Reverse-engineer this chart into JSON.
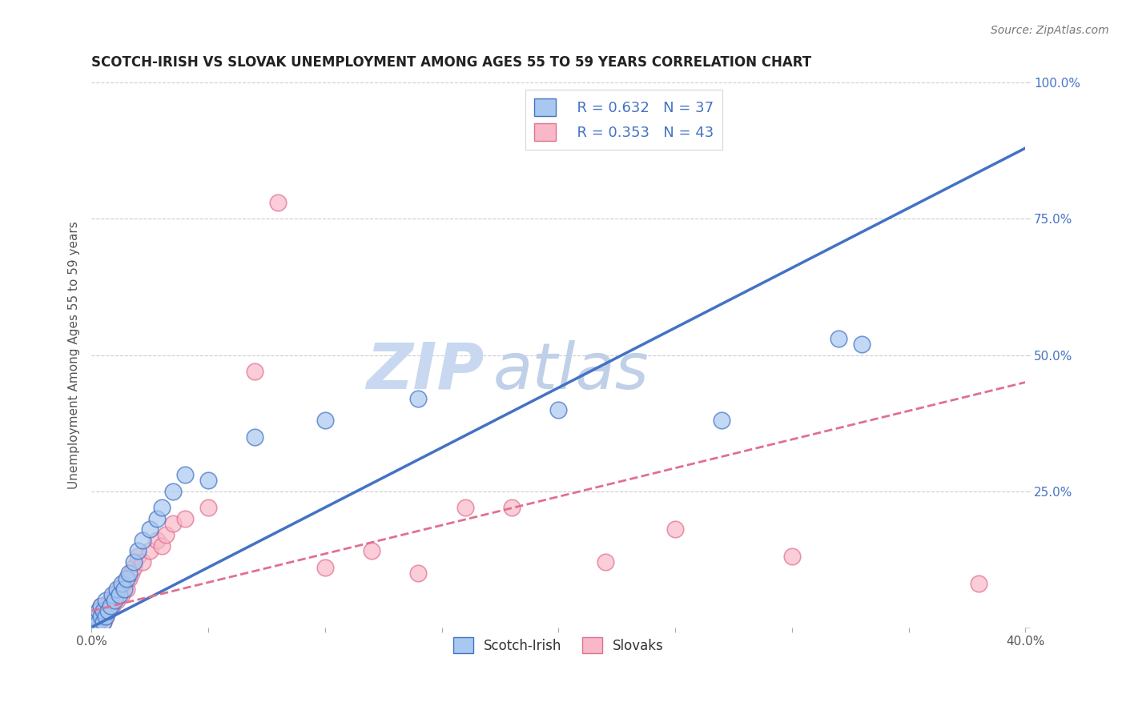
{
  "title": "SCOTCH-IRISH VS SLOVAK UNEMPLOYMENT AMONG AGES 55 TO 59 YEARS CORRELATION CHART",
  "source_text": "Source: ZipAtlas.com",
  "ylabel": "Unemployment Among Ages 55 to 59 years",
  "xlim": [
    0.0,
    0.4
  ],
  "ylim": [
    0.0,
    1.0
  ],
  "xticks": [
    0.0,
    0.05,
    0.1,
    0.15,
    0.2,
    0.25,
    0.3,
    0.35,
    0.4
  ],
  "yticks": [
    0.0,
    0.25,
    0.5,
    0.75,
    1.0
  ],
  "yticklabels_right": [
    "",
    "25.0%",
    "50.0%",
    "75.0%",
    "100.0%"
  ],
  "r_scotch_irish": 0.632,
  "n_scotch_irish": 37,
  "r_slovak": 0.353,
  "n_slovak": 43,
  "scotch_irish_color": "#a8c8f0",
  "slovak_color": "#f8b8c8",
  "trend_blue": "#4472c4",
  "trend_pink": "#e07090",
  "watermark": "ZIPatlas",
  "watermark_color": "#d0dff0",
  "scotch_irish_x": [
    0.001,
    0.002,
    0.002,
    0.003,
    0.003,
    0.004,
    0.004,
    0.005,
    0.005,
    0.006,
    0.006,
    0.007,
    0.008,
    0.009,
    0.01,
    0.011,
    0.012,
    0.013,
    0.014,
    0.015,
    0.016,
    0.018,
    0.02,
    0.022,
    0.025,
    0.028,
    0.03,
    0.035,
    0.04,
    0.05,
    0.07,
    0.1,
    0.14,
    0.2,
    0.27,
    0.32,
    0.33
  ],
  "scotch_irish_y": [
    0.005,
    0.01,
    0.02,
    0.01,
    0.03,
    0.02,
    0.04,
    0.01,
    0.03,
    0.02,
    0.05,
    0.03,
    0.04,
    0.06,
    0.05,
    0.07,
    0.06,
    0.08,
    0.07,
    0.09,
    0.1,
    0.12,
    0.14,
    0.16,
    0.18,
    0.2,
    0.22,
    0.25,
    0.28,
    0.27,
    0.35,
    0.38,
    0.42,
    0.4,
    0.38,
    0.53,
    0.52
  ],
  "slovak_x": [
    0.001,
    0.002,
    0.002,
    0.003,
    0.003,
    0.004,
    0.004,
    0.005,
    0.005,
    0.006,
    0.006,
    0.007,
    0.008,
    0.009,
    0.01,
    0.011,
    0.012,
    0.013,
    0.014,
    0.015,
    0.016,
    0.017,
    0.018,
    0.02,
    0.022,
    0.025,
    0.028,
    0.03,
    0.032,
    0.035,
    0.04,
    0.05,
    0.07,
    0.08,
    0.1,
    0.12,
    0.14,
    0.16,
    0.18,
    0.22,
    0.25,
    0.3,
    0.38
  ],
  "slovak_y": [
    0.005,
    0.01,
    0.02,
    0.01,
    0.03,
    0.02,
    0.04,
    0.01,
    0.03,
    0.02,
    0.04,
    0.03,
    0.05,
    0.04,
    0.06,
    0.05,
    0.07,
    0.06,
    0.08,
    0.07,
    0.09,
    0.1,
    0.11,
    0.13,
    0.12,
    0.14,
    0.16,
    0.15,
    0.17,
    0.19,
    0.2,
    0.22,
    0.47,
    0.78,
    0.11,
    0.14,
    0.1,
    0.22,
    0.22,
    0.12,
    0.18,
    0.13,
    0.08
  ],
  "blue_line_x0": 0.0,
  "blue_line_y0": 0.0,
  "blue_line_x1": 0.4,
  "blue_line_y1": 0.88,
  "pink_line_x0": 0.0,
  "pink_line_y0": 0.03,
  "pink_line_x1": 0.4,
  "pink_line_y1": 0.45
}
